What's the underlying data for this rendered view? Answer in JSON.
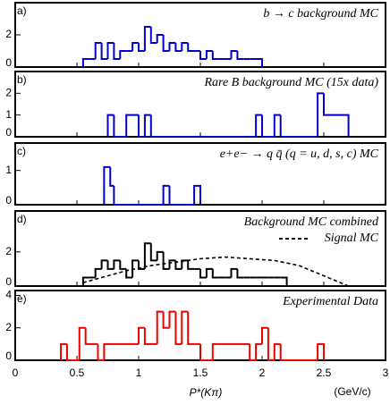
{
  "chart_data": [
    {
      "type": "histogram",
      "label": "a)",
      "title": "b → c background MC",
      "xlim": [
        0,
        3
      ],
      "xticks": [
        0,
        0.5,
        1,
        1.5,
        2,
        2.5,
        3
      ],
      "ylim": [
        0,
        4
      ],
      "yticks": [
        0,
        2
      ],
      "series": [
        {
          "color": "#0000cc",
          "bins": [
            0.55,
            0.6,
            0.65,
            0.7,
            0.75,
            0.8,
            0.85,
            0.9,
            0.95,
            1.0,
            1.05,
            1.1,
            1.15,
            1.2,
            1.25,
            1.3,
            1.35,
            1.4,
            1.45,
            1.5,
            1.55,
            1.6,
            1.65,
            1.7,
            1.75,
            1.8,
            1.85,
            1.9,
            1.95,
            2.0
          ],
          "values": [
            0.5,
            0.5,
            1.5,
            0.5,
            1.5,
            0.5,
            1,
            1,
            1.5,
            1,
            2.5,
            1.5,
            2,
            1,
            1.5,
            1,
            1.5,
            1,
            1,
            0.5,
            1,
            0.5,
            0.5,
            0.5,
            1,
            0.5,
            0.5,
            0.5,
            0.5
          ]
        }
      ]
    },
    {
      "type": "histogram",
      "label": "b)",
      "title": "Rare B background MC (15x data)",
      "xlim": [
        0,
        3
      ],
      "xticks": [
        0,
        0.5,
        1,
        1.5,
        2,
        2.5,
        3
      ],
      "ylim": [
        0,
        3
      ],
      "yticks": [
        0,
        1,
        2
      ],
      "series": [
        {
          "color": "#0000cc",
          "bins": [
            0.75,
            0.8,
            0.9,
            1.0,
            1.05,
            1.1,
            1.95,
            2.0,
            2.1,
            2.15,
            2.45,
            2.5,
            2.7
          ],
          "values": [
            1,
            0,
            1,
            0,
            1,
            0,
            1,
            0,
            1,
            0,
            2,
            1
          ]
        }
      ]
    },
    {
      "type": "histogram",
      "label": "c)",
      "title": "e+e− → q q̄ (q = u, d, s, c) MC",
      "xlim": [
        0,
        3
      ],
      "xticks": [
        0,
        0.5,
        1,
        1.5,
        2,
        2.5,
        3
      ],
      "ylim": [
        0,
        1.8
      ],
      "yticks": [
        0,
        1
      ],
      "series": [
        {
          "color": "#0000cc",
          "bins": [
            0.72,
            0.77,
            0.8,
            1.2,
            1.25,
            1.45,
            1.5
          ],
          "values": [
            1.1,
            0.55,
            0,
            0.55,
            0,
            0.55
          ]
        }
      ]
    },
    {
      "type": "histogram",
      "label": "d)",
      "title": "Background MC combined",
      "xlim": [
        0,
        3
      ],
      "xticks": [
        0,
        0.5,
        1,
        1.5,
        2,
        2.5,
        3
      ],
      "ylim": [
        0,
        4.4
      ],
      "yticks": [
        0,
        2
      ],
      "series": [
        {
          "color": "#000000",
          "bins": [
            0.55,
            0.6,
            0.65,
            0.7,
            0.75,
            0.8,
            0.85,
            0.9,
            0.95,
            1.0,
            1.05,
            1.1,
            1.15,
            1.2,
            1.25,
            1.3,
            1.35,
            1.4,
            1.45,
            1.5,
            1.55,
            1.6,
            1.65,
            1.7,
            1.75,
            1.8,
            1.85,
            1.9,
            1.95,
            2.0,
            2.05,
            2.1,
            2.15,
            2.2
          ],
          "values": [
            0.5,
            0.5,
            1,
            1.5,
            1,
            1.5,
            1,
            0.5,
            1.5,
            1,
            2.5,
            1.5,
            2,
            1,
            1.5,
            1,
            1.5,
            1,
            1,
            0.5,
            1,
            0.5,
            0.5,
            0.5,
            1,
            0.5,
            0.5,
            0.5,
            0.5,
            0.5,
            0.5,
            0.5,
            0.5
          ]
        },
        {
          "name": "Signal MC",
          "color": "#000000",
          "style": "dashed",
          "x": [
            0.55,
            0.7,
            0.9,
            1.1,
            1.3,
            1.5,
            1.7,
            1.9,
            2.1,
            2.3,
            2.5,
            2.7
          ],
          "values": [
            0.2,
            0.5,
            0.9,
            1.2,
            1.4,
            1.6,
            1.7,
            1.6,
            1.5,
            1.2,
            0.6,
            0
          ]
        }
      ]
    },
    {
      "type": "histogram",
      "label": "e)",
      "title": "Experimental Data",
      "xlim": [
        0,
        3
      ],
      "xticks": [
        0,
        0.5,
        1,
        1.5,
        2,
        2.5,
        3
      ],
      "ylim": [
        0,
        4.3
      ],
      "yticks": [
        0,
        2,
        4
      ],
      "xlabel": "P*(Kπ)",
      "x_unit": "(GeV/c)",
      "series": [
        {
          "color": "#ee0000",
          "bins": [
            0.37,
            0.42,
            0.52,
            0.57,
            0.62,
            0.67,
            0.72,
            0.8,
            1.0,
            1.05,
            1.15,
            1.2,
            1.25,
            1.3,
            1.35,
            1.4,
            1.45,
            1.5,
            1.6,
            1.9,
            1.95,
            2.0,
            2.05,
            2.1,
            2.15,
            2.45,
            2.5
          ],
          "values": [
            1,
            0,
            2,
            1,
            1,
            0,
            1,
            1,
            2,
            1,
            3,
            2,
            3,
            1,
            3,
            1,
            1,
            0,
            1,
            0,
            1,
            2,
            0,
            1,
            0,
            1
          ]
        }
      ]
    }
  ]
}
